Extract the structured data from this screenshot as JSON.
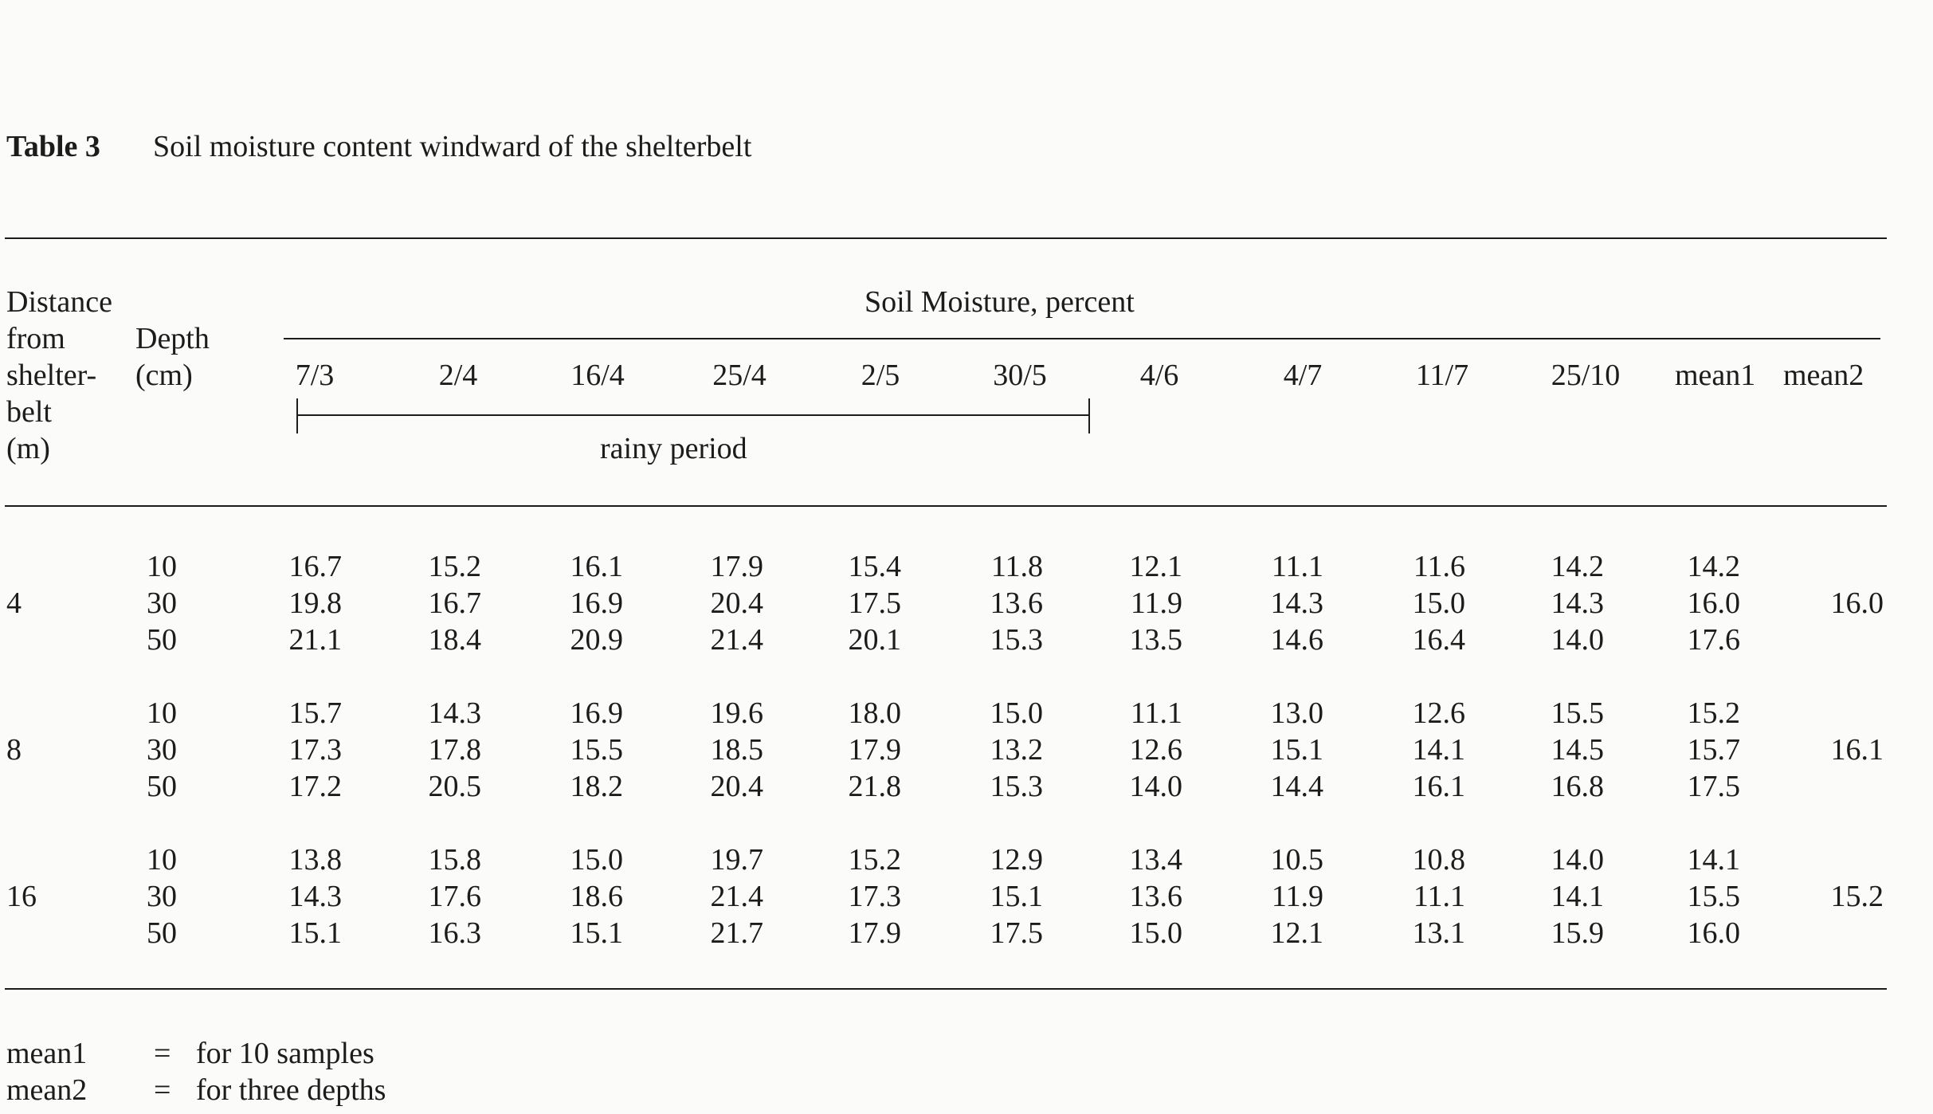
{
  "caption": {
    "label": "Table 3",
    "text": "Soil moisture content windward of the shelterbelt"
  },
  "header": {
    "distance_lines": [
      "Distance",
      "from",
      "shelter-",
      "belt",
      "(m)"
    ],
    "depth_lines": [
      "Depth",
      "(cm)"
    ],
    "group_title": "Soil Moisture, percent",
    "dates": [
      "7/3",
      "2/4",
      "16/4",
      "25/4",
      "2/5",
      "30/5",
      "4/6",
      "4/7",
      "11/7",
      "25/10"
    ],
    "mean1": "mean1",
    "mean2": "mean2",
    "rainy_period": "rainy period"
  },
  "groups": [
    {
      "distance": "4",
      "mean2": "16.0",
      "rows": [
        {
          "depth": "10",
          "values": [
            "16.7",
            "15.2",
            "16.1",
            "17.9",
            "15.4",
            "11.8",
            "12.1",
            "11.1",
            "11.6",
            "14.2"
          ],
          "mean1": "14.2"
        },
        {
          "depth": "30",
          "values": [
            "19.8",
            "16.7",
            "16.9",
            "20.4",
            "17.5",
            "13.6",
            "11.9",
            "14.3",
            "15.0",
            "14.3"
          ],
          "mean1": "16.0"
        },
        {
          "depth": "50",
          "values": [
            "21.1",
            "18.4",
            "20.9",
            "21.4",
            "20.1",
            "15.3",
            "13.5",
            "14.6",
            "16.4",
            "14.0"
          ],
          "mean1": "17.6"
        }
      ]
    },
    {
      "distance": "8",
      "mean2": "16.1",
      "rows": [
        {
          "depth": "10",
          "values": [
            "15.7",
            "14.3",
            "16.9",
            "19.6",
            "18.0",
            "15.0",
            "11.1",
            "13.0",
            "12.6",
            "15.5"
          ],
          "mean1": "15.2"
        },
        {
          "depth": "30",
          "values": [
            "17.3",
            "17.8",
            "15.5",
            "18.5",
            "17.9",
            "13.2",
            "12.6",
            "15.1",
            "14.1",
            "14.5"
          ],
          "mean1": "15.7"
        },
        {
          "depth": "50",
          "values": [
            "17.2",
            "20.5",
            "18.2",
            "20.4",
            "21.8",
            "15.3",
            "14.0",
            "14.4",
            "16.1",
            "16.8"
          ],
          "mean1": "17.5"
        }
      ]
    },
    {
      "distance": "16",
      "mean2": "15.2",
      "rows": [
        {
          "depth": "10",
          "values": [
            "13.8",
            "15.8",
            "15.0",
            "19.7",
            "15.2",
            "12.9",
            "13.4",
            "10.5",
            "10.8",
            "14.0"
          ],
          "mean1": "14.1"
        },
        {
          "depth": "30",
          "values": [
            "14.3",
            "17.6",
            "18.6",
            "21.4",
            "17.3",
            "15.1",
            "13.6",
            "11.9",
            "11.1",
            "14.1"
          ],
          "mean1": "15.5"
        },
        {
          "depth": "50",
          "values": [
            "15.1",
            "16.3",
            "15.1",
            "21.7",
            "17.9",
            "17.5",
            "15.0",
            "12.1",
            "13.1",
            "15.9"
          ],
          "mean1": "16.0"
        }
      ]
    }
  ],
  "footnotes": [
    {
      "term": "mean1",
      "sep": "=",
      "desc": "for 10 samples"
    },
    {
      "term": "mean2",
      "sep": "=",
      "desc": "for three depths"
    }
  ]
}
